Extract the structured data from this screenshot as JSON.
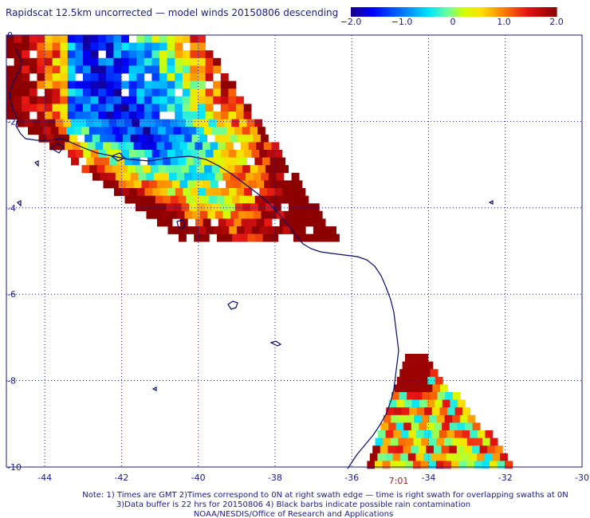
{
  "title": "Rapidscat 12.5km uncorrected — model winds 20150806 descending",
  "colorbar": {
    "labels": [
      "−2.0",
      "−1.0",
      "0",
      "1.0",
      "2.0"
    ],
    "min": -2.0,
    "max": 2.0,
    "colormap": "blue-cyan-green-yellow-red-darkred"
  },
  "map": {
    "lon_range": [
      -45,
      -30
    ],
    "lat_range": [
      -10,
      0
    ],
    "x_ticks": [
      "-44",
      "-42",
      "-40",
      "-38",
      "-36",
      "-34",
      "-32",
      "-30"
    ],
    "y_ticks": [
      "0",
      "-2",
      "-4",
      "-6",
      "-8",
      "-10"
    ],
    "grid": "dotted",
    "coastline_color": "#0a0a6a"
  },
  "swath_time": "7:01",
  "notes": {
    "line1": "Note: 1) Times are GMT 2)Times correspond to 0N at right swath edge — time is right swath for overlapping swaths at 0N",
    "line2": "3)Data buffer is 22 hrs for 20150806 4) Black barbs indicate possible rain contamination",
    "line3": "NOAA/NESDIS/Office of Research and Applications"
  }
}
